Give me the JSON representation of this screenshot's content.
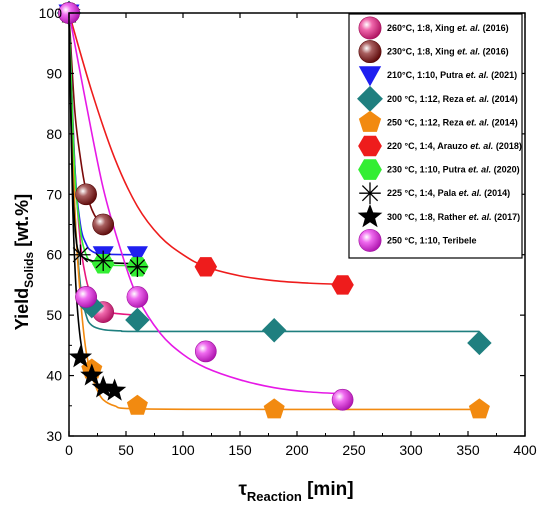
{
  "chart_data": {
    "type": "scatter",
    "xaxis": {
      "label_main": "τ",
      "label_sub": "Reaction",
      "label_rest": " [min]",
      "min": 0,
      "max": 400,
      "ticks": [
        0,
        50,
        100,
        150,
        200,
        250,
        300,
        350,
        400
      ]
    },
    "yaxis": {
      "label_main": "Yield",
      "label_sub": "Solids",
      "label_rest": " [wt.%]",
      "min": 30,
      "max": 100,
      "ticks": [
        30,
        40,
        50,
        60,
        70,
        80,
        90,
        100
      ]
    },
    "legend_position": "top-right",
    "series": [
      {
        "name": "260°C, 1:8, Xing et. al. (2016)",
        "label_parts": [
          "260°C, 1:8, Xing ",
          "et. al.",
          " (2016)"
        ],
        "marker": "sphere",
        "color": "#e8177f",
        "points": [
          [
            0,
            100
          ],
          [
            15,
            53
          ],
          [
            30,
            50.5
          ]
        ],
        "curve": [
          [
            0,
            100
          ],
          [
            5,
            75
          ],
          [
            10,
            62
          ],
          [
            15,
            56
          ],
          [
            20,
            53
          ],
          [
            25,
            51.5
          ],
          [
            30,
            50.8
          ],
          [
            40,
            50.3
          ],
          [
            60,
            50
          ]
        ]
      },
      {
        "name": "230°C, 1:8, Xing et. al. (2016)",
        "label_parts": [
          "230°C, 1:8, Xing ",
          "et. al.",
          " (2016)"
        ],
        "marker": "sphere",
        "color": "#7a0a0a",
        "points": [
          [
            0,
            100
          ],
          [
            15,
            70
          ],
          [
            30,
            65
          ]
        ],
        "curve": [
          [
            0,
            100
          ],
          [
            5,
            84
          ],
          [
            10,
            76
          ],
          [
            15,
            70.5
          ],
          [
            20,
            67.5
          ],
          [
            25,
            65.8
          ],
          [
            30,
            65
          ],
          [
            35,
            64.5
          ]
        ]
      },
      {
        "name": "210°C, 1:10, Putra et. al. (2021)",
        "label_parts": [
          "210°C, 1:10, Putra ",
          "et. al.",
          " (2021)"
        ],
        "marker": "triangle-down",
        "color": "#1f1ff0",
        "points": [
          [
            0,
            100
          ],
          [
            30,
            60
          ],
          [
            60,
            60
          ]
        ],
        "curve": [
          [
            0,
            100
          ],
          [
            5,
            75
          ],
          [
            10,
            65
          ],
          [
            15,
            61.8
          ],
          [
            20,
            60.6
          ],
          [
            30,
            60.1
          ],
          [
            60,
            60
          ]
        ]
      },
      {
        "name": "200 °C, 1:12, Reza et. al. (2014)",
        "label_parts": [
          "200 °C, 1:12, Reza ",
          "et. al.",
          " (2014)"
        ],
        "marker": "diamond",
        "color": "#1f7f7f",
        "points": [
          [
            0,
            100
          ],
          [
            20,
            51.5
          ],
          [
            60,
            49.2
          ],
          [
            180,
            47.5
          ],
          [
            360,
            45.4
          ]
        ],
        "curve": [
          [
            0,
            100
          ],
          [
            5,
            68
          ],
          [
            10,
            55
          ],
          [
            15,
            50
          ],
          [
            20,
            48.3
          ],
          [
            30,
            47.6
          ],
          [
            45,
            47.4
          ],
          [
            60,
            47.3
          ],
          [
            180,
            47.3
          ],
          [
            360,
            47.3
          ]
        ]
      },
      {
        "name": "250 °C, 1:12, Reza et. al. (2014)",
        "label_parts": [
          "250 °C, 1:12, Reza ",
          "et. al.",
          " (2014)"
        ],
        "marker": "pentagon",
        "color": "#f28a10",
        "points": [
          [
            0,
            100
          ],
          [
            20,
            41
          ],
          [
            60,
            35
          ],
          [
            180,
            34.4
          ],
          [
            360,
            34.4
          ]
        ],
        "curve": [
          [
            0,
            100
          ],
          [
            5,
            68
          ],
          [
            10,
            53
          ],
          [
            15,
            44
          ],
          [
            20,
            40
          ],
          [
            25,
            37.5
          ],
          [
            30,
            36
          ],
          [
            40,
            35
          ],
          [
            60,
            34.5
          ],
          [
            180,
            34.4
          ],
          [
            360,
            34.4
          ]
        ]
      },
      {
        "name": "220 °C, 1:4, Arauzo et. al. (2018)",
        "label_parts": [
          "220 °C, 1:4, Arauzo ",
          "et. al.",
          " (2018)"
        ],
        "marker": "hexagon",
        "color": "#ee1c1c",
        "points": [
          [
            0,
            100
          ],
          [
            120,
            58
          ],
          [
            240,
            55
          ]
        ],
        "curve": [
          [
            0,
            100
          ],
          [
            20,
            87
          ],
          [
            40,
            76
          ],
          [
            60,
            68
          ],
          [
            80,
            63
          ],
          [
            100,
            60
          ],
          [
            120,
            58
          ],
          [
            150,
            56.5
          ],
          [
            180,
            55.7
          ],
          [
            210,
            55.3
          ],
          [
            240,
            55.1
          ]
        ]
      },
      {
        "name": "230 °C, 1:10, Putra et. al. (2020)",
        "label_parts": [
          "230 °C, 1:10, Putra ",
          "et. al.",
          " (2020)"
        ],
        "marker": "hexagon",
        "color": "#33ee33",
        "points": [
          [
            0,
            100
          ],
          [
            30,
            58.5
          ],
          [
            60,
            58
          ]
        ],
        "curve": [
          [
            0,
            100
          ],
          [
            5,
            74
          ],
          [
            10,
            64
          ],
          [
            15,
            60
          ],
          [
            20,
            58.8
          ],
          [
            30,
            58.3
          ],
          [
            60,
            58.2
          ]
        ]
      },
      {
        "name": "225 °C, 1:4, Pala et. al. (2014)",
        "label_parts": [
          "225 °C, 1:4, Pala ",
          "et. al.",
          " (2014)"
        ],
        "marker": "asterisk",
        "color": "#000000",
        "points": [
          [
            0,
            100
          ],
          [
            10,
            60
          ],
          [
            30,
            59
          ],
          [
            60,
            58
          ]
        ],
        "curve": [
          [
            0,
            100
          ],
          [
            3,
            73
          ],
          [
            6,
            63
          ],
          [
            10,
            60
          ],
          [
            20,
            59
          ],
          [
            30,
            58.7
          ],
          [
            60,
            58.5
          ]
        ]
      },
      {
        "name": "300 °C, 1:8, Rather et. al. (2017)",
        "label_parts": [
          "300 °C, 1:8, Rather ",
          "et. al.",
          " (2017)"
        ],
        "marker": "star",
        "color": "#000000",
        "points": [
          [
            0,
            100
          ],
          [
            10,
            43
          ],
          [
            20,
            40
          ],
          [
            30,
            38
          ],
          [
            40,
            37.5
          ]
        ],
        "curve": [
          [
            0,
            100
          ],
          [
            3,
            70
          ],
          [
            6,
            55
          ],
          [
            10,
            46
          ],
          [
            15,
            41.5
          ],
          [
            20,
            39.5
          ],
          [
            30,
            38
          ],
          [
            40,
            37.5
          ]
        ]
      },
      {
        "name": "250 °C, 1:10, Teribele",
        "label_parts": [
          "250 °C, 1:10, Teribele",
          "",
          ""
        ],
        "marker": "sphere",
        "color": "#e619e6",
        "points": [
          [
            0,
            100
          ],
          [
            15,
            53
          ],
          [
            60,
            53
          ],
          [
            120,
            44
          ],
          [
            240,
            36
          ]
        ],
        "curve": [
          [
            0,
            100
          ],
          [
            15,
            85
          ],
          [
            30,
            71
          ],
          [
            45,
            61
          ],
          [
            60,
            53
          ],
          [
            80,
            47
          ],
          [
            100,
            43.5
          ],
          [
            120,
            41.3
          ],
          [
            150,
            39.3
          ],
          [
            180,
            38
          ],
          [
            210,
            37.3
          ],
          [
            240,
            37
          ]
        ]
      }
    ]
  }
}
